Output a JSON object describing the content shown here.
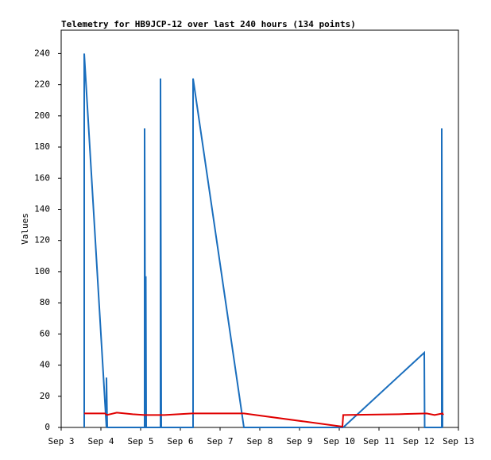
{
  "chart_data": {
    "type": "line",
    "title": "Telemetry for HB9JCP-12 over last 240 hours (134 points)",
    "y_label": "Values",
    "xlim": [
      3,
      13
    ],
    "xticks": [
      {
        "value": 3,
        "label": "Sep 3"
      },
      {
        "value": 4,
        "label": "Sep 4"
      },
      {
        "value": 5,
        "label": "Sep 5"
      },
      {
        "value": 6,
        "label": "Sep 6"
      },
      {
        "value": 7,
        "label": "Sep 7"
      },
      {
        "value": 8,
        "label": "Sep 8"
      },
      {
        "value": 9,
        "label": "Sep 9"
      },
      {
        "value": 10,
        "label": "Sep 10"
      },
      {
        "value": 11,
        "label": "Sep 11"
      },
      {
        "value": 12,
        "label": "Sep 12"
      },
      {
        "value": 13,
        "label": "Sep 13"
      }
    ],
    "ylim": [
      0,
      255
    ],
    "yticks": [
      0,
      20,
      40,
      60,
      80,
      100,
      120,
      140,
      160,
      180,
      200,
      220,
      240
    ],
    "series": [
      {
        "color": "#1a6ebd",
        "x": [
          3.58,
          3.58,
          4.14,
          4.14,
          4.16,
          5.1,
          5.1,
          5.12,
          5.13,
          5.14,
          5.5,
          5.5,
          5.52,
          6.32,
          6.32,
          7.6,
          10.1,
          12.14,
          12.15,
          12.58,
          12.58,
          12.6
        ],
        "values": [
          0,
          240,
          0,
          32,
          0,
          0,
          192,
          0,
          97,
          0,
          0,
          224,
          0,
          0,
          224,
          0,
          0,
          48,
          0,
          0,
          192,
          0
        ]
      },
      {
        "color": "#e00000",
        "x": [
          3.58,
          4.1,
          4.15,
          4.4,
          4.8,
          5.1,
          5.6,
          6.3,
          7.6,
          10.08,
          10.1,
          11.5,
          12.2,
          12.4,
          12.6,
          12.62
        ],
        "values": [
          9,
          9,
          8,
          9.5,
          8.5,
          8,
          8,
          9,
          9,
          0.5,
          8,
          8.5,
          9,
          8,
          9,
          8
        ]
      }
    ]
  }
}
